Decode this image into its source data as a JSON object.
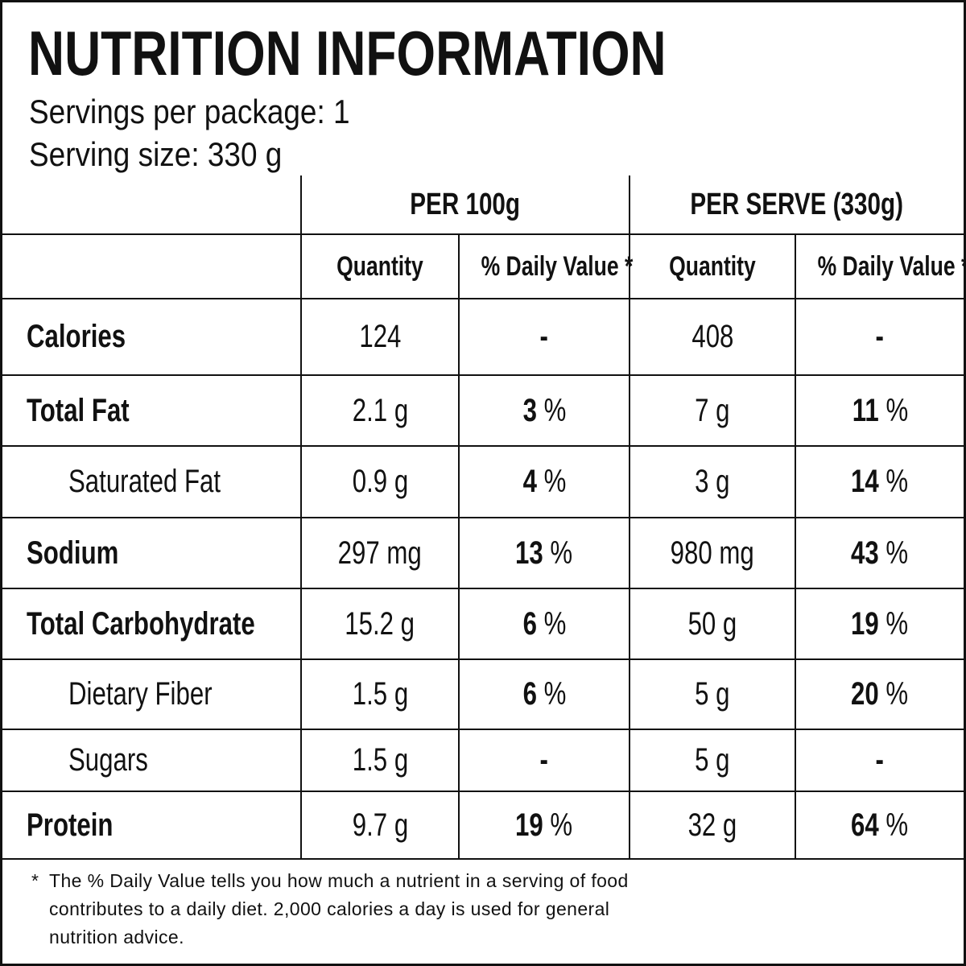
{
  "header": {
    "title": "NUTRITION INFORMATION",
    "servings": "Servings per package: 1",
    "serving_size": "Serving size: 330 g"
  },
  "table": {
    "group_headers": [
      "PER 100g",
      "PER SERVE (330g)"
    ],
    "column_headers": [
      "Quantity",
      "% Daily Value *",
      "Quantity",
      "% Daily Value *"
    ],
    "rows": [
      {
        "sub": false,
        "cells": [
          "Calories",
          "124",
          "-",
          "408",
          "-"
        ]
      },
      {
        "sub": false,
        "cells": [
          "Total Fat",
          "2.1 g",
          "3 %",
          "7 g",
          "11 %"
        ]
      },
      {
        "sub": true,
        "cells": [
          "Saturated Fat",
          "0.9 g",
          "4 %",
          "3 g",
          "14 %"
        ]
      },
      {
        "sub": false,
        "cells": [
          "Sodium",
          "297 mg",
          "13 %",
          "980 mg",
          "43 %"
        ]
      },
      {
        "sub": false,
        "cells": [
          "Total Carbohydrate",
          "15.2 g",
          "6 %",
          "50 g",
          "19 %"
        ]
      },
      {
        "sub": true,
        "cells": [
          "Dietary Fiber",
          "1.5 g",
          "6 %",
          "5 g",
          "20 %"
        ]
      },
      {
        "sub": true,
        "cells": [
          "Sugars",
          "1.5 g",
          "-",
          "5 g",
          "-"
        ]
      },
      {
        "sub": false,
        "cells": [
          "Protein",
          "9.7 g",
          "19 %",
          "32 g",
          "64 %"
        ]
      }
    ]
  },
  "footnote": {
    "marker": "*",
    "lines": [
      "The % Daily Value tells you how much a nutrient in a serving of food",
      "contributes to a daily diet. 2,000 calories a day is used for general",
      "nutrition advice."
    ]
  }
}
